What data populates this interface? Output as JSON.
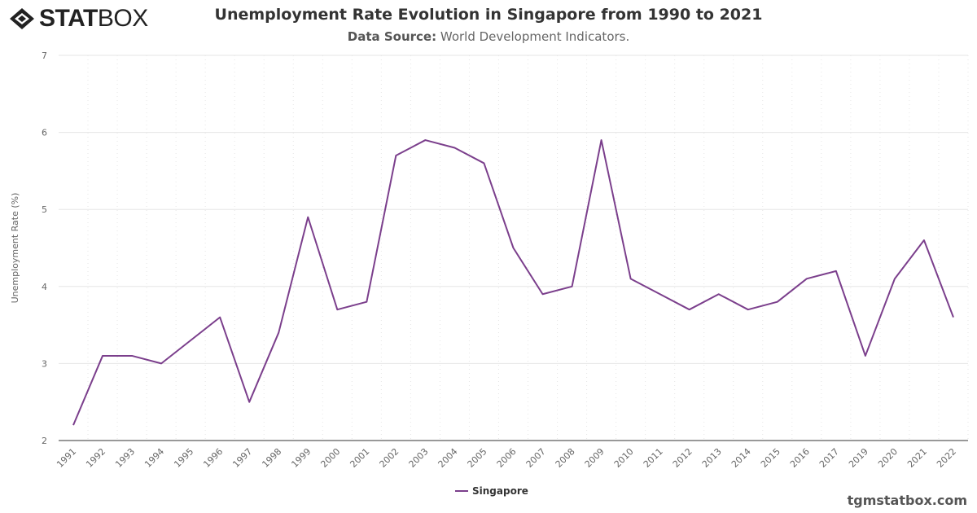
{
  "logo": {
    "text_bold": "STAT",
    "text_light": "BOX"
  },
  "header": {
    "title": "Unemployment Rate Evolution in Singapore from 1990 to 2021",
    "source_label": "Data Source:",
    "source_value": "World Development Indicators."
  },
  "footer": {
    "site": "tgmstatbox.com"
  },
  "chart_data": {
    "type": "line",
    "title": "Unemployment Rate Evolution in Singapore from 1990 to 2021",
    "ylabel": "Unemployment Rate (%)",
    "xlabel": "",
    "ylim": [
      2,
      7
    ],
    "yticks": [
      "2",
      "3",
      "4",
      "5",
      "6",
      "7"
    ],
    "grid": true,
    "legend": "bottom-center",
    "categories": [
      "1991",
      "1992",
      "1993",
      "1994",
      "1995",
      "1996",
      "1997",
      "1998",
      "1999",
      "2000",
      "2001",
      "2002",
      "2003",
      "2004",
      "2005",
      "2006",
      "2007",
      "2008",
      "2009",
      "2010",
      "2011",
      "2012",
      "2013",
      "2014",
      "2015",
      "2016",
      "2017",
      "2019",
      "2020",
      "2021",
      "2022"
    ],
    "series": [
      {
        "name": "Singapore",
        "color": "#7b3f8c",
        "values": [
          2.2,
          3.1,
          3.1,
          3.0,
          3.3,
          3.6,
          2.5,
          3.4,
          4.9,
          3.7,
          3.8,
          5.7,
          5.9,
          5.8,
          5.6,
          4.5,
          3.9,
          4.0,
          5.9,
          4.1,
          3.9,
          3.7,
          3.9,
          3.7,
          3.8,
          4.1,
          4.2,
          3.1,
          4.1,
          4.6,
          3.6
        ]
      }
    ]
  }
}
